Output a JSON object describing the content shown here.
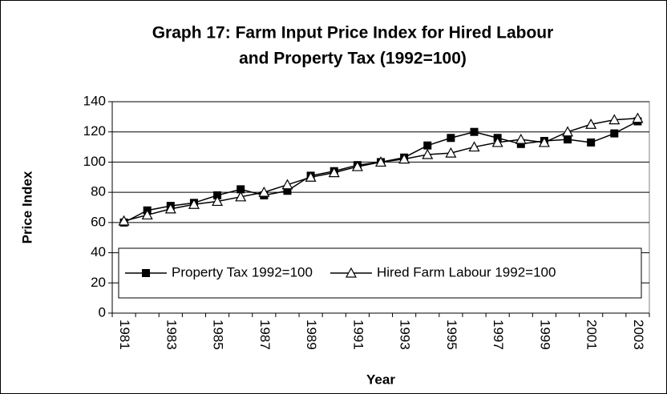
{
  "chart_data": {
    "type": "line",
    "title": [
      "Graph 17: Farm Input Price Index for Hired Labour",
      "and Property Tax (1992=100)"
    ],
    "x_label": "Year",
    "y_label": "Price Index",
    "categories": [
      "1981",
      null,
      "1983",
      null,
      "1985",
      null,
      "1987",
      null,
      "1989",
      null,
      "1991",
      null,
      "1993",
      null,
      "1995",
      null,
      "1997",
      null,
      "1999",
      null,
      "2001",
      null,
      "2003"
    ],
    "series": [
      {
        "name": "Property Tax 1992=100",
        "color": "#000000",
        "marker": "square",
        "values": [
          60,
          68,
          71,
          73,
          78,
          82,
          78,
          81,
          91,
          94,
          98,
          100,
          103,
          111,
          116,
          120,
          116,
          112,
          114,
          115,
          113,
          119,
          127
        ]
      },
      {
        "name": "Hired Farm Labour 1992=100",
        "color": "#000000",
        "marker": "triangle",
        "values": [
          61,
          65,
          69,
          72,
          74,
          77,
          80,
          85,
          90,
          93,
          97,
          100,
          102,
          105,
          106,
          110,
          113,
          115,
          113,
          120,
          125,
          128,
          129
        ]
      }
    ],
    "ylim": [
      0,
      140
    ],
    "yticks": [
      0,
      20,
      40,
      60,
      80,
      100,
      120,
      140
    ],
    "grid": true
  }
}
